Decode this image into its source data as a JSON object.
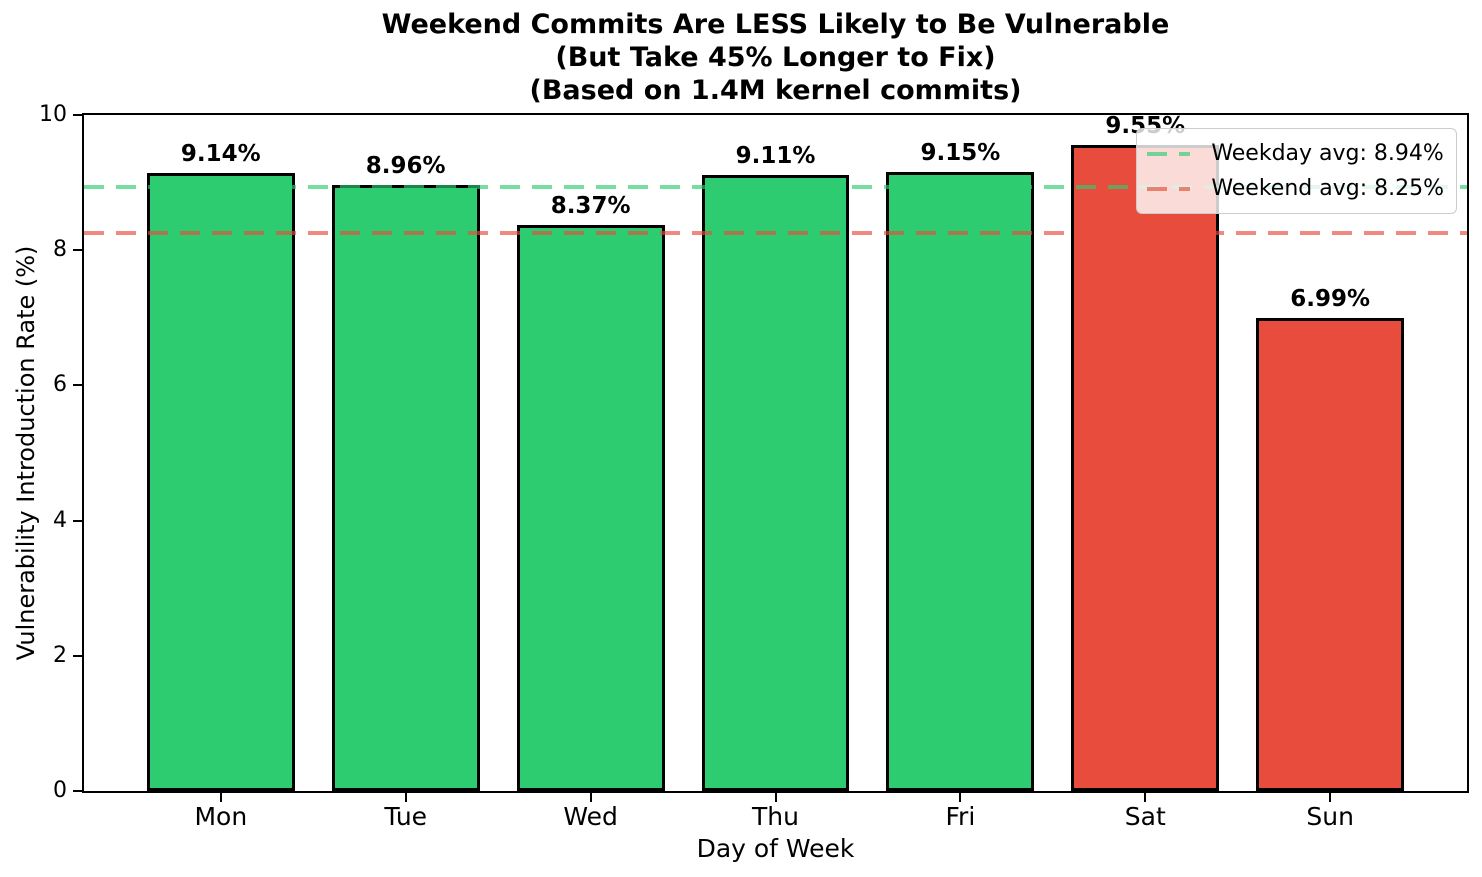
{
  "title": {
    "lines": [
      "Weekend Commits Are LESS Likely to Be Vulnerable",
      "(But Take 45% Longer to Fix)",
      "(Based on 1.4M kernel commits)"
    ]
  },
  "chart_data": {
    "type": "bar",
    "title": "Weekend Commits Are LESS Likely to Be Vulnerable (But Take 45% Longer to Fix) (Based on 1.4M kernel commits)",
    "xlabel": "Day of Week",
    "ylabel": "Vulnerability Introduction Rate (%)",
    "categories": [
      "Mon",
      "Tue",
      "Wed",
      "Thu",
      "Fri",
      "Sat",
      "Sun"
    ],
    "values": [
      9.14,
      8.96,
      8.37,
      9.11,
      9.15,
      9.55,
      6.99
    ],
    "bar_labels": [
      "9.14%",
      "8.96%",
      "8.37%",
      "9.11%",
      "9.15%",
      "9.55%",
      "6.99%"
    ],
    "bar_colors": [
      "#2ecc71",
      "#2ecc71",
      "#2ecc71",
      "#2ecc71",
      "#2ecc71",
      "#e74c3c",
      "#e74c3c"
    ],
    "bar_edge_color": "#000000",
    "ylim": [
      0,
      10
    ],
    "yticks": [
      "0",
      "2",
      "4",
      "6",
      "8",
      "10"
    ],
    "ytick_values": [
      0,
      2,
      4,
      6,
      8,
      10
    ],
    "grid": false,
    "legend_position": "upper right",
    "reference_lines": [
      {
        "name": "weekday-avg",
        "label": "Weekday avg: 8.94%",
        "value": 8.94,
        "color": "rgba(46, 204, 113, 0.65)",
        "style": "dashed"
      },
      {
        "name": "weekend-avg",
        "label": "Weekend avg: 8.25%",
        "value": 8.25,
        "color": "rgba(231, 76, 60, 0.65)",
        "style": "dashed"
      }
    ]
  },
  "colors": {
    "weekday_bar": "#2ecc71",
    "weekend_bar": "#e74c3c",
    "weekday_avg_line": "rgba(46, 204, 113, 0.65)",
    "weekend_avg_line": "rgba(231, 76, 60, 0.65)",
    "spine": "#000000",
    "legend_border": "#cccccc"
  }
}
